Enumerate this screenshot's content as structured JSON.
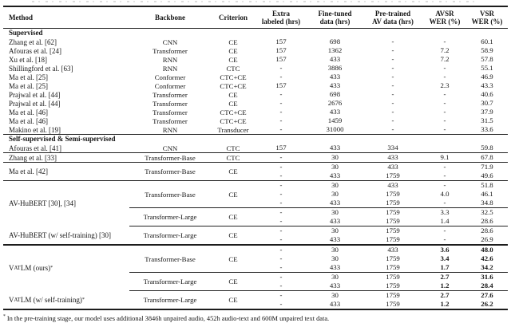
{
  "table": {
    "header": {
      "method": "Method",
      "backbone": "Backbone",
      "criterion": "Criterion",
      "extra1": "Extra",
      "extra2": "labeled (hrs)",
      "fine1": "Fine-tuned",
      "fine2": "data (hrs)",
      "pre1": "Pre-trained",
      "pre2": "AV data (hrs)",
      "avsr1": "AVSR",
      "avsr2": "WER (%)",
      "vsr1": "VSR",
      "vsr2": "WER (%)"
    },
    "body": [
      {
        "sec": "Supervised"
      },
      {
        "m": "Zhang et al. [62]",
        "sg": [
          {
            "b": "CNN",
            "c": "CE",
            "r": [
              [
                "157",
                "698",
                "-",
                "-",
                "60.1"
              ]
            ]
          }
        ]
      },
      {
        "m": "Afouras et al. [24]",
        "sg": [
          {
            "b": "Transformer",
            "c": "CE",
            "r": [
              [
                "157",
                "1362",
                "-",
                "7.2",
                "58.9"
              ]
            ]
          }
        ]
      },
      {
        "m": "Xu et al. [18]",
        "sg": [
          {
            "b": "RNN",
            "c": "CE",
            "r": [
              [
                "157",
                "433",
                "-",
                "7.2",
                "57.8"
              ]
            ]
          }
        ]
      },
      {
        "m": "Shillingford et al. [63]",
        "sg": [
          {
            "b": "RNN",
            "c": "CTC",
            "r": [
              [
                "-",
                "3886",
                "-",
                "-",
                "55.1"
              ]
            ]
          }
        ]
      },
      {
        "m": "Ma et al. [25]",
        "sg": [
          {
            "b": "Conformer",
            "c": "CTC+CE",
            "r": [
              [
                "-",
                "433",
                "-",
                "-",
                "46.9"
              ]
            ]
          }
        ]
      },
      {
        "m": "Ma et al. [25]",
        "sg": [
          {
            "b": "Conformer",
            "c": "CTC+CE",
            "r": [
              [
                "157",
                "433",
                "-",
                "2.3",
                "43.3"
              ]
            ]
          }
        ]
      },
      {
        "m": "Prajwal et al. [44]",
        "sg": [
          {
            "b": "Transformer",
            "c": "CE",
            "r": [
              [
                "-",
                "698",
                "-",
                "-",
                "40.6"
              ]
            ]
          }
        ]
      },
      {
        "m": "Prajwal et al. [44]",
        "sg": [
          {
            "b": "Transformer",
            "c": "CE",
            "r": [
              [
                "-",
                "2676",
                "-",
                "-",
                "30.7"
              ]
            ]
          }
        ]
      },
      {
        "m": "Ma et al. [46]",
        "sg": [
          {
            "b": "Transformer",
            "c": "CTC+CE",
            "r": [
              [
                "-",
                "433",
                "-",
                "-",
                "37.9"
              ]
            ]
          }
        ]
      },
      {
        "m": "Ma et al. [46]",
        "sg": [
          {
            "b": "Transformer",
            "c": "CTC+CE",
            "r": [
              [
                "-",
                "1459",
                "-",
                "-",
                "31.5"
              ]
            ]
          }
        ]
      },
      {
        "m": "Makino et al. [19]",
        "sg": [
          {
            "b": "RNN",
            "c": "Transducer",
            "r": [
              [
                "-",
                "31000",
                "-",
                "-",
                "33.6"
              ]
            ]
          }
        ]
      },
      {
        "rule": "full"
      },
      {
        "sec": "Self-supervised & Semi-supervised"
      },
      {
        "m": "Afouras et al. [41]",
        "sg": [
          {
            "b": "CNN",
            "c": "CTC",
            "r": [
              [
                "157",
                "433",
                "334",
                "",
                "59.8"
              ]
            ]
          }
        ]
      },
      {
        "rule": "full"
      },
      {
        "m": "Zhang et al. [33]",
        "sg": [
          {
            "b": "Transformer-Base",
            "c": "CTC",
            "r": [
              [
                "-",
                "30",
                "433",
                "9.1",
                "67.8"
              ]
            ]
          }
        ]
      },
      {
        "rule": "full"
      },
      {
        "m": "Ma et al. [42]",
        "sg": [
          {
            "b": "Transformer-Base",
            "c": "CE",
            "r": [
              [
                "-",
                "30",
                "433",
                "-",
                "71.9"
              ],
              [
                "-",
                "433",
                "1759",
                "-",
                "49.6"
              ]
            ]
          }
        ]
      },
      {
        "rule": "full"
      },
      {
        "m": "AV-HuBERT [30], [34]",
        "sg": [
          {
            "b": "Transformer-Base",
            "c": "CE",
            "r": [
              [
                "-",
                "30",
                "433",
                "-",
                "51.8"
              ],
              [
                "-",
                "30",
                "1759",
                "4.0",
                "46.1"
              ],
              [
                "-",
                "433",
                "1759",
                "-",
                "34.8"
              ]
            ]
          },
          {
            "b": "Transformer-Large",
            "c": "CE",
            "r": [
              [
                "-",
                "30",
                "1759",
                "3.3",
                "32.5"
              ],
              [
                "-",
                "433",
                "1759",
                "1.4",
                "28.6"
              ]
            ]
          }
        ]
      },
      {
        "rule": "partial"
      },
      {
        "m": "AV-HuBERT (w/ self-training) [30]",
        "sg": [
          {
            "b": "Transformer-Large",
            "c": "CE",
            "r": [
              [
                "-",
                "30",
                "1759",
                "-",
                "28.6"
              ],
              [
                "-",
                "433",
                "1759",
                "-",
                "26.9"
              ]
            ]
          }
        ]
      },
      {
        "rule": "thick"
      },
      {
        "m": [
          [
            "V",
            ""
          ],
          [
            "AT",
            "sc"
          ],
          [
            "LM (ours)",
            ""
          ],
          [
            "*",
            "sup"
          ]
        ],
        "sg": [
          {
            "b": "Transformer-Base",
            "c": "CE",
            "bold": true,
            "r": [
              [
                "-",
                "30",
                "433",
                "3.6",
                "48.0"
              ],
              [
                "-",
                "30",
                "1759",
                "3.4",
                "42.6"
              ],
              [
                "-",
                "433",
                "1759",
                "1.7",
                "34.2"
              ]
            ]
          },
          {
            "b": "Transformer-Large",
            "c": "CE",
            "bold": true,
            "r": [
              [
                "-",
                "30",
                "1759",
                "2.7",
                "31.6"
              ],
              [
                "-",
                "433",
                "1759",
                "1.2",
                "28.4"
              ]
            ]
          }
        ]
      },
      {
        "rule": "partial"
      },
      {
        "m": [
          [
            "V",
            ""
          ],
          [
            "AT",
            "sc"
          ],
          [
            "LM (w/ self-training)",
            ""
          ],
          [
            "*",
            "sup"
          ]
        ],
        "sg": [
          {
            "b": "Transformer-Large",
            "c": "CE",
            "bold": true,
            "r": [
              [
                "-",
                "30",
                "1759",
                "2.7",
                "27.6"
              ],
              [
                "-",
                "433",
                "1759",
                "1.2",
                "26.2"
              ]
            ]
          }
        ]
      }
    ]
  },
  "footnote": {
    "marker": "*",
    "text": "In the pre-training stage, our model uses additional 3846h unpaired audio, 452h audio-text and 600M unpaired text data."
  }
}
